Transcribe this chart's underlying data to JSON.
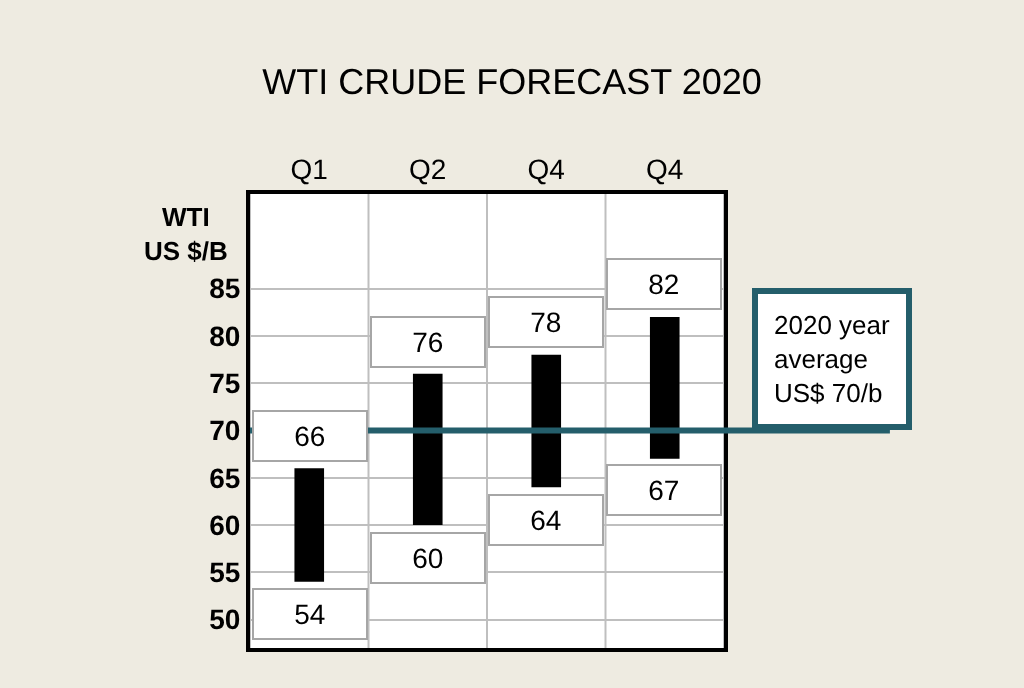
{
  "chart_data": {
    "type": "bar",
    "title": "WTI CRUDE FORECAST 2020",
    "ylabel": "WTI\nUS $/B",
    "categories": [
      "Q1",
      "Q2",
      "Q4",
      "Q4"
    ],
    "base": [
      54,
      60,
      64,
      67
    ],
    "values": [
      12,
      16,
      14,
      15
    ],
    "color": "#000000",
    "ylim": [
      47,
      95
    ],
    "yticks": [
      50,
      55,
      60,
      65,
      70,
      75,
      80,
      85
    ],
    "grid": true,
    "annotations": [
      {
        "text": "54",
        "x": "Q1",
        "y": 54
      },
      {
        "text": "66",
        "x": "Q1",
        "y": 66
      },
      {
        "text": "60",
        "x": "Q2",
        "y": 60
      },
      {
        "text": "76",
        "x": "Q2",
        "y": 76
      },
      {
        "text": "64",
        "x": "Q4",
        "y": 64
      },
      {
        "text": "78",
        "x": "Q4",
        "y": 78
      },
      {
        "text": "67",
        "y": 67
      },
      {
        "text": "82",
        "y": 82
      }
    ],
    "ref_lines": [
      {
        "axis": "y",
        "value": 70,
        "label": "2020 year\naverage\nUS$ 70/b",
        "color": "#245e6b"
      }
    ]
  }
}
